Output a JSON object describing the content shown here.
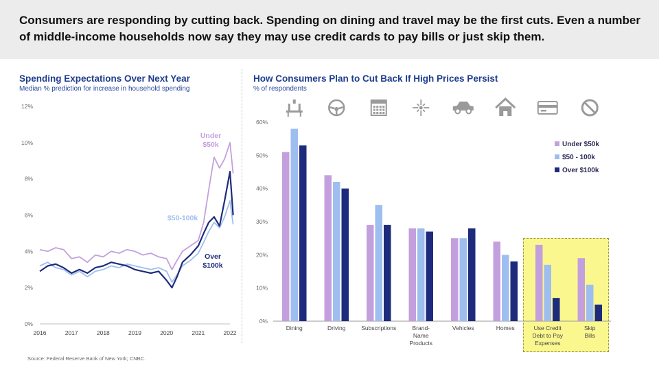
{
  "headline": "Consumers are responding by cutting back. Spending on dining and travel may be the first cuts. Even a number of middle-income households now say they may use credit cards to pay bills or just skip them.",
  "source": "Source: Federal Reserve Bank of New York; CNBC.",
  "colors": {
    "under50k": "#c49fdd",
    "mid": "#9fbef0",
    "over100k": "#1e2b7c",
    "title": "#1f3d8f",
    "highlight": "#fbf78f"
  },
  "chart_data": [
    {
      "type": "line",
      "title": "Spending Expectations Over Next Year",
      "subtitle": "Median % prediction for increase in household spending",
      "ylim": [
        0,
        12
      ],
      "xlim": [
        2016,
        2022
      ],
      "y_ticks": [
        "0%",
        "2%",
        "4%",
        "6%",
        "8%",
        "10%",
        "12%"
      ],
      "x_ticks": [
        "2016",
        "2017",
        "2018",
        "2019",
        "2020",
        "2021",
        "2022"
      ],
      "grid": false,
      "annotations": [
        {
          "text_lines": [
            "Under",
            "$50k"
          ],
          "series": "under50k"
        },
        {
          "text_lines": [
            "$50-100k"
          ],
          "series": "mid"
        },
        {
          "text_lines": [
            "Over",
            "$100k"
          ],
          "series": "over100k"
        }
      ],
      "series": [
        {
          "key": "under50k",
          "x": [
            2016.0,
            2016.25,
            2016.5,
            2016.75,
            2017.0,
            2017.25,
            2017.5,
            2017.75,
            2018.0,
            2018.25,
            2018.5,
            2018.75,
            2019.0,
            2019.25,
            2019.5,
            2019.75,
            2020.0,
            2020.17,
            2020.33,
            2020.5,
            2020.75,
            2021.0,
            2021.17,
            2021.33,
            2021.5,
            2021.67,
            2021.83,
            2022.0,
            2022.1
          ],
          "values": [
            4.1,
            4.0,
            4.2,
            4.1,
            3.6,
            3.7,
            3.4,
            3.8,
            3.7,
            4.0,
            3.9,
            4.1,
            4.0,
            3.8,
            3.9,
            3.7,
            3.6,
            3.0,
            3.5,
            4.0,
            4.3,
            4.6,
            5.6,
            7.4,
            9.2,
            8.6,
            9.1,
            10.0,
            8.3
          ]
        },
        {
          "key": "mid",
          "x": [
            2016.0,
            2016.25,
            2016.5,
            2016.75,
            2017.0,
            2017.25,
            2017.5,
            2017.75,
            2018.0,
            2018.25,
            2018.5,
            2018.75,
            2019.0,
            2019.25,
            2019.5,
            2019.75,
            2020.0,
            2020.17,
            2020.33,
            2020.5,
            2020.75,
            2021.0,
            2021.17,
            2021.33,
            2021.5,
            2021.67,
            2021.83,
            2022.0,
            2022.1
          ],
          "values": [
            3.2,
            3.4,
            3.1,
            3.0,
            2.7,
            2.9,
            2.6,
            2.9,
            3.0,
            3.2,
            3.1,
            3.3,
            3.2,
            3.1,
            3.0,
            3.1,
            2.9,
            2.3,
            2.7,
            3.2,
            3.5,
            3.9,
            4.5,
            5.1,
            5.6,
            5.3,
            5.9,
            6.8,
            5.5
          ]
        },
        {
          "key": "over100k",
          "x": [
            2016.0,
            2016.25,
            2016.5,
            2016.75,
            2017.0,
            2017.25,
            2017.5,
            2017.75,
            2018.0,
            2018.25,
            2018.5,
            2018.75,
            2019.0,
            2019.25,
            2019.5,
            2019.75,
            2020.0,
            2020.17,
            2020.33,
            2020.5,
            2020.75,
            2021.0,
            2021.17,
            2021.33,
            2021.5,
            2021.67,
            2021.83,
            2022.0,
            2022.1
          ],
          "values": [
            2.9,
            3.2,
            3.3,
            3.1,
            2.8,
            3.0,
            2.8,
            3.1,
            3.2,
            3.4,
            3.3,
            3.2,
            3.0,
            2.9,
            2.8,
            2.9,
            2.4,
            2.0,
            2.6,
            3.4,
            3.8,
            4.3,
            5.0,
            5.6,
            5.9,
            5.4,
            6.8,
            8.4,
            6.0
          ]
        }
      ]
    },
    {
      "type": "bar",
      "title": "How Consumers Plan to Cut Back If High Prices Persist",
      "subtitle": "% of respondents",
      "ylim": [
        0,
        60
      ],
      "y_ticks": [
        "0%",
        "10%",
        "20%",
        "30%",
        "40%",
        "50%",
        "60%"
      ],
      "categories": [
        [
          "Dining"
        ],
        [
          "Driving"
        ],
        [
          "Subscriptions"
        ],
        [
          "Brand-",
          "Name",
          "Products"
        ],
        [
          "Vehicles"
        ],
        [
          "Homes"
        ],
        [
          "Use Credit",
          "Debt to Pay",
          "Expenses"
        ],
        [
          "Skip",
          "Bills"
        ]
      ],
      "icons": [
        "dining-icon",
        "steering-wheel-icon",
        "calendar-icon",
        "sparkle-icon",
        "car-icon",
        "house-icon",
        "credit-card-icon",
        "prohibited-icon"
      ],
      "legend": {
        "placement": "right",
        "entries": [
          "Under $50k",
          "$50 - 100k",
          "Over $100k"
        ]
      },
      "highlighted_categories": [
        6,
        7
      ],
      "series": [
        {
          "name": "Under $50k",
          "values": [
            51,
            44,
            29,
            28,
            25,
            24,
            23,
            19
          ]
        },
        {
          "name": "$50 - 100k",
          "values": [
            58,
            42,
            35,
            28,
            25,
            20,
            17,
            11
          ]
        },
        {
          "name": "Over $100k",
          "values": [
            53,
            40,
            29,
            27,
            28,
            18,
            7,
            5
          ]
        }
      ]
    }
  ]
}
